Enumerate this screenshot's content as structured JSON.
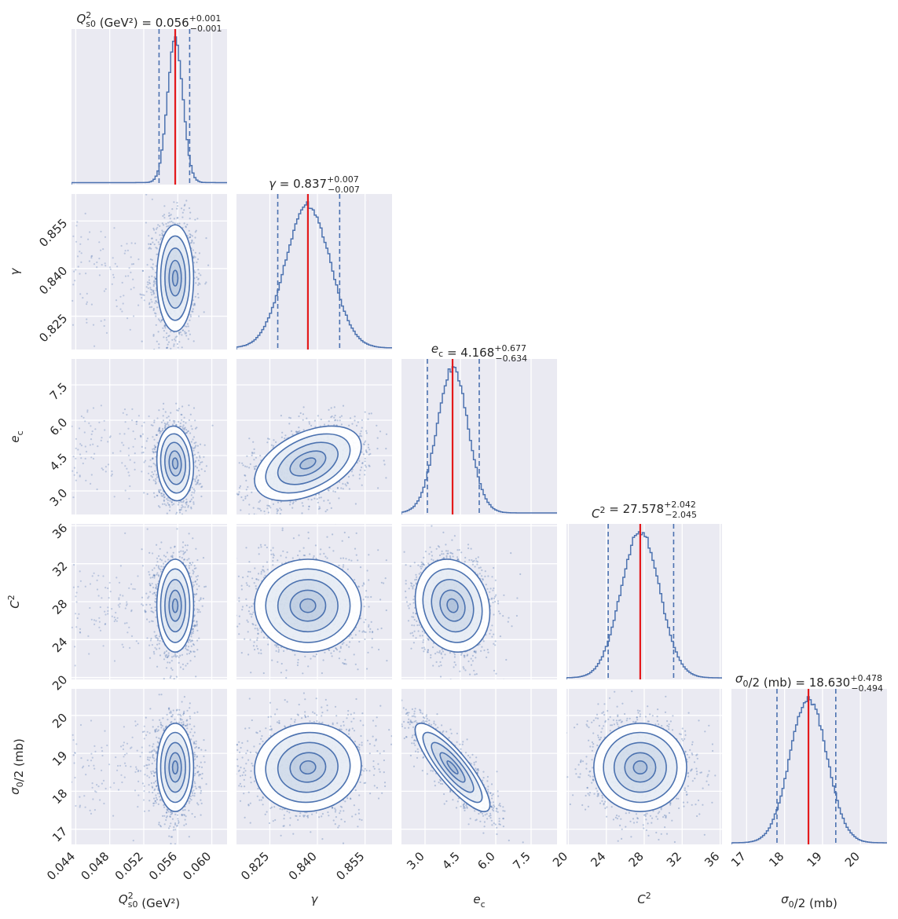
{
  "chart_data": {
    "type": "corner",
    "parameters": [
      {
        "symbol": "Q_s0^2",
        "label_main": "Q",
        "label_sup": "2",
        "label_sub": "s0",
        "label_suffix": " (GeV²)",
        "range": [
          0.0435,
          0.0618
        ],
        "ticks": [
          "0.044",
          "0.048",
          "0.052",
          "0.056",
          "0.060"
        ],
        "tick_values": [
          0.044,
          0.048,
          0.052,
          0.056,
          0.06
        ],
        "gridlines": [
          0.044,
          0.048,
          0.052,
          0.056,
          0.06
        ],
        "median": 0.0557,
        "q16": 0.0538,
        "q84": 0.0574,
        "sigma": 0.0009,
        "title_value": "0.056",
        "title_plus": "+0.001",
        "title_minus": "−0.001",
        "has_tail": true
      },
      {
        "symbol": "gamma",
        "label_main": "γ",
        "label_sup": "",
        "label_sub": "",
        "label_suffix": "",
        "range": [
          0.8145,
          0.8635
        ],
        "ticks": [
          "0.825",
          "0.840",
          "0.855"
        ],
        "tick_values": [
          0.825,
          0.84,
          0.855
        ],
        "gridlines": [
          0.825,
          0.84,
          0.855
        ],
        "median": 0.837,
        "q16": 0.8275,
        "q84": 0.847,
        "sigma": 0.007,
        "title_value": "0.837",
        "title_plus": "+0.007",
        "title_minus": "−0.007",
        "has_tail": false
      },
      {
        "symbol": "e_c",
        "label_main": "e",
        "label_sup": "",
        "label_sub": "c",
        "label_suffix": "",
        "range": [
          2.0,
          8.6
        ],
        "ticks": [
          "3.0",
          "4.5",
          "6.0",
          "7.5"
        ],
        "tick_values": [
          3.0,
          4.5,
          6.0,
          7.5
        ],
        "gridlines": [
          3.0,
          4.5,
          6.0,
          7.5
        ],
        "median": 4.168,
        "q16": 3.1,
        "q84": 5.3,
        "sigma": 0.66,
        "title_value": "4.168",
        "title_plus": "+0.677",
        "title_minus": "−0.634",
        "has_tail": false
      },
      {
        "symbol": "C^2",
        "label_main": "C",
        "label_sup": "2",
        "label_sub": "",
        "label_suffix": "",
        "range": [
          19.8,
          36.2
        ],
        "ticks": [
          "20",
          "24",
          "28",
          "32",
          "36"
        ],
        "tick_values": [
          20,
          24,
          28,
          32,
          36
        ],
        "gridlines": [
          20,
          24,
          28,
          32,
          36
        ],
        "median": 27.578,
        "q16": 24.2,
        "q84": 31.1,
        "sigma": 2.04,
        "title_value": "27.578",
        "title_plus": "+2.042",
        "title_minus": "−2.045",
        "has_tail": false
      },
      {
        "symbol": "sigma_0/2",
        "label_main": "σ",
        "label_sup": "",
        "label_sub": "0",
        "label_suffix": "/2 (mb)",
        "range": [
          16.6,
          20.7
        ],
        "ticks": [
          "17",
          "18",
          "19",
          "20"
        ],
        "tick_values": [
          17,
          18,
          19,
          20
        ],
        "gridlines": [
          17,
          18,
          19,
          20
        ],
        "median": 18.63,
        "q16": 17.8,
        "q84": 19.35,
        "sigma": 0.485,
        "title_value": "18.630",
        "title_plus": "+0.478",
        "title_minus": "−0.494",
        "has_tail": false
      }
    ],
    "correlations": {
      "1-0": 0.0,
      "2-0": -0.1,
      "2-1": 0.45,
      "3-0": 0.0,
      "3-1": 0.0,
      "3-2": -0.15,
      "4-0": 0.0,
      "4-1": 0.05,
      "4-2": -0.85,
      "4-3": 0.0
    },
    "grid": true,
    "colors": {
      "series": "#4c72b0",
      "median_line": "#e41a1c",
      "panel_bg": "#eaeaf2",
      "grid": "#ffffff",
      "text": "#262626"
    }
  }
}
